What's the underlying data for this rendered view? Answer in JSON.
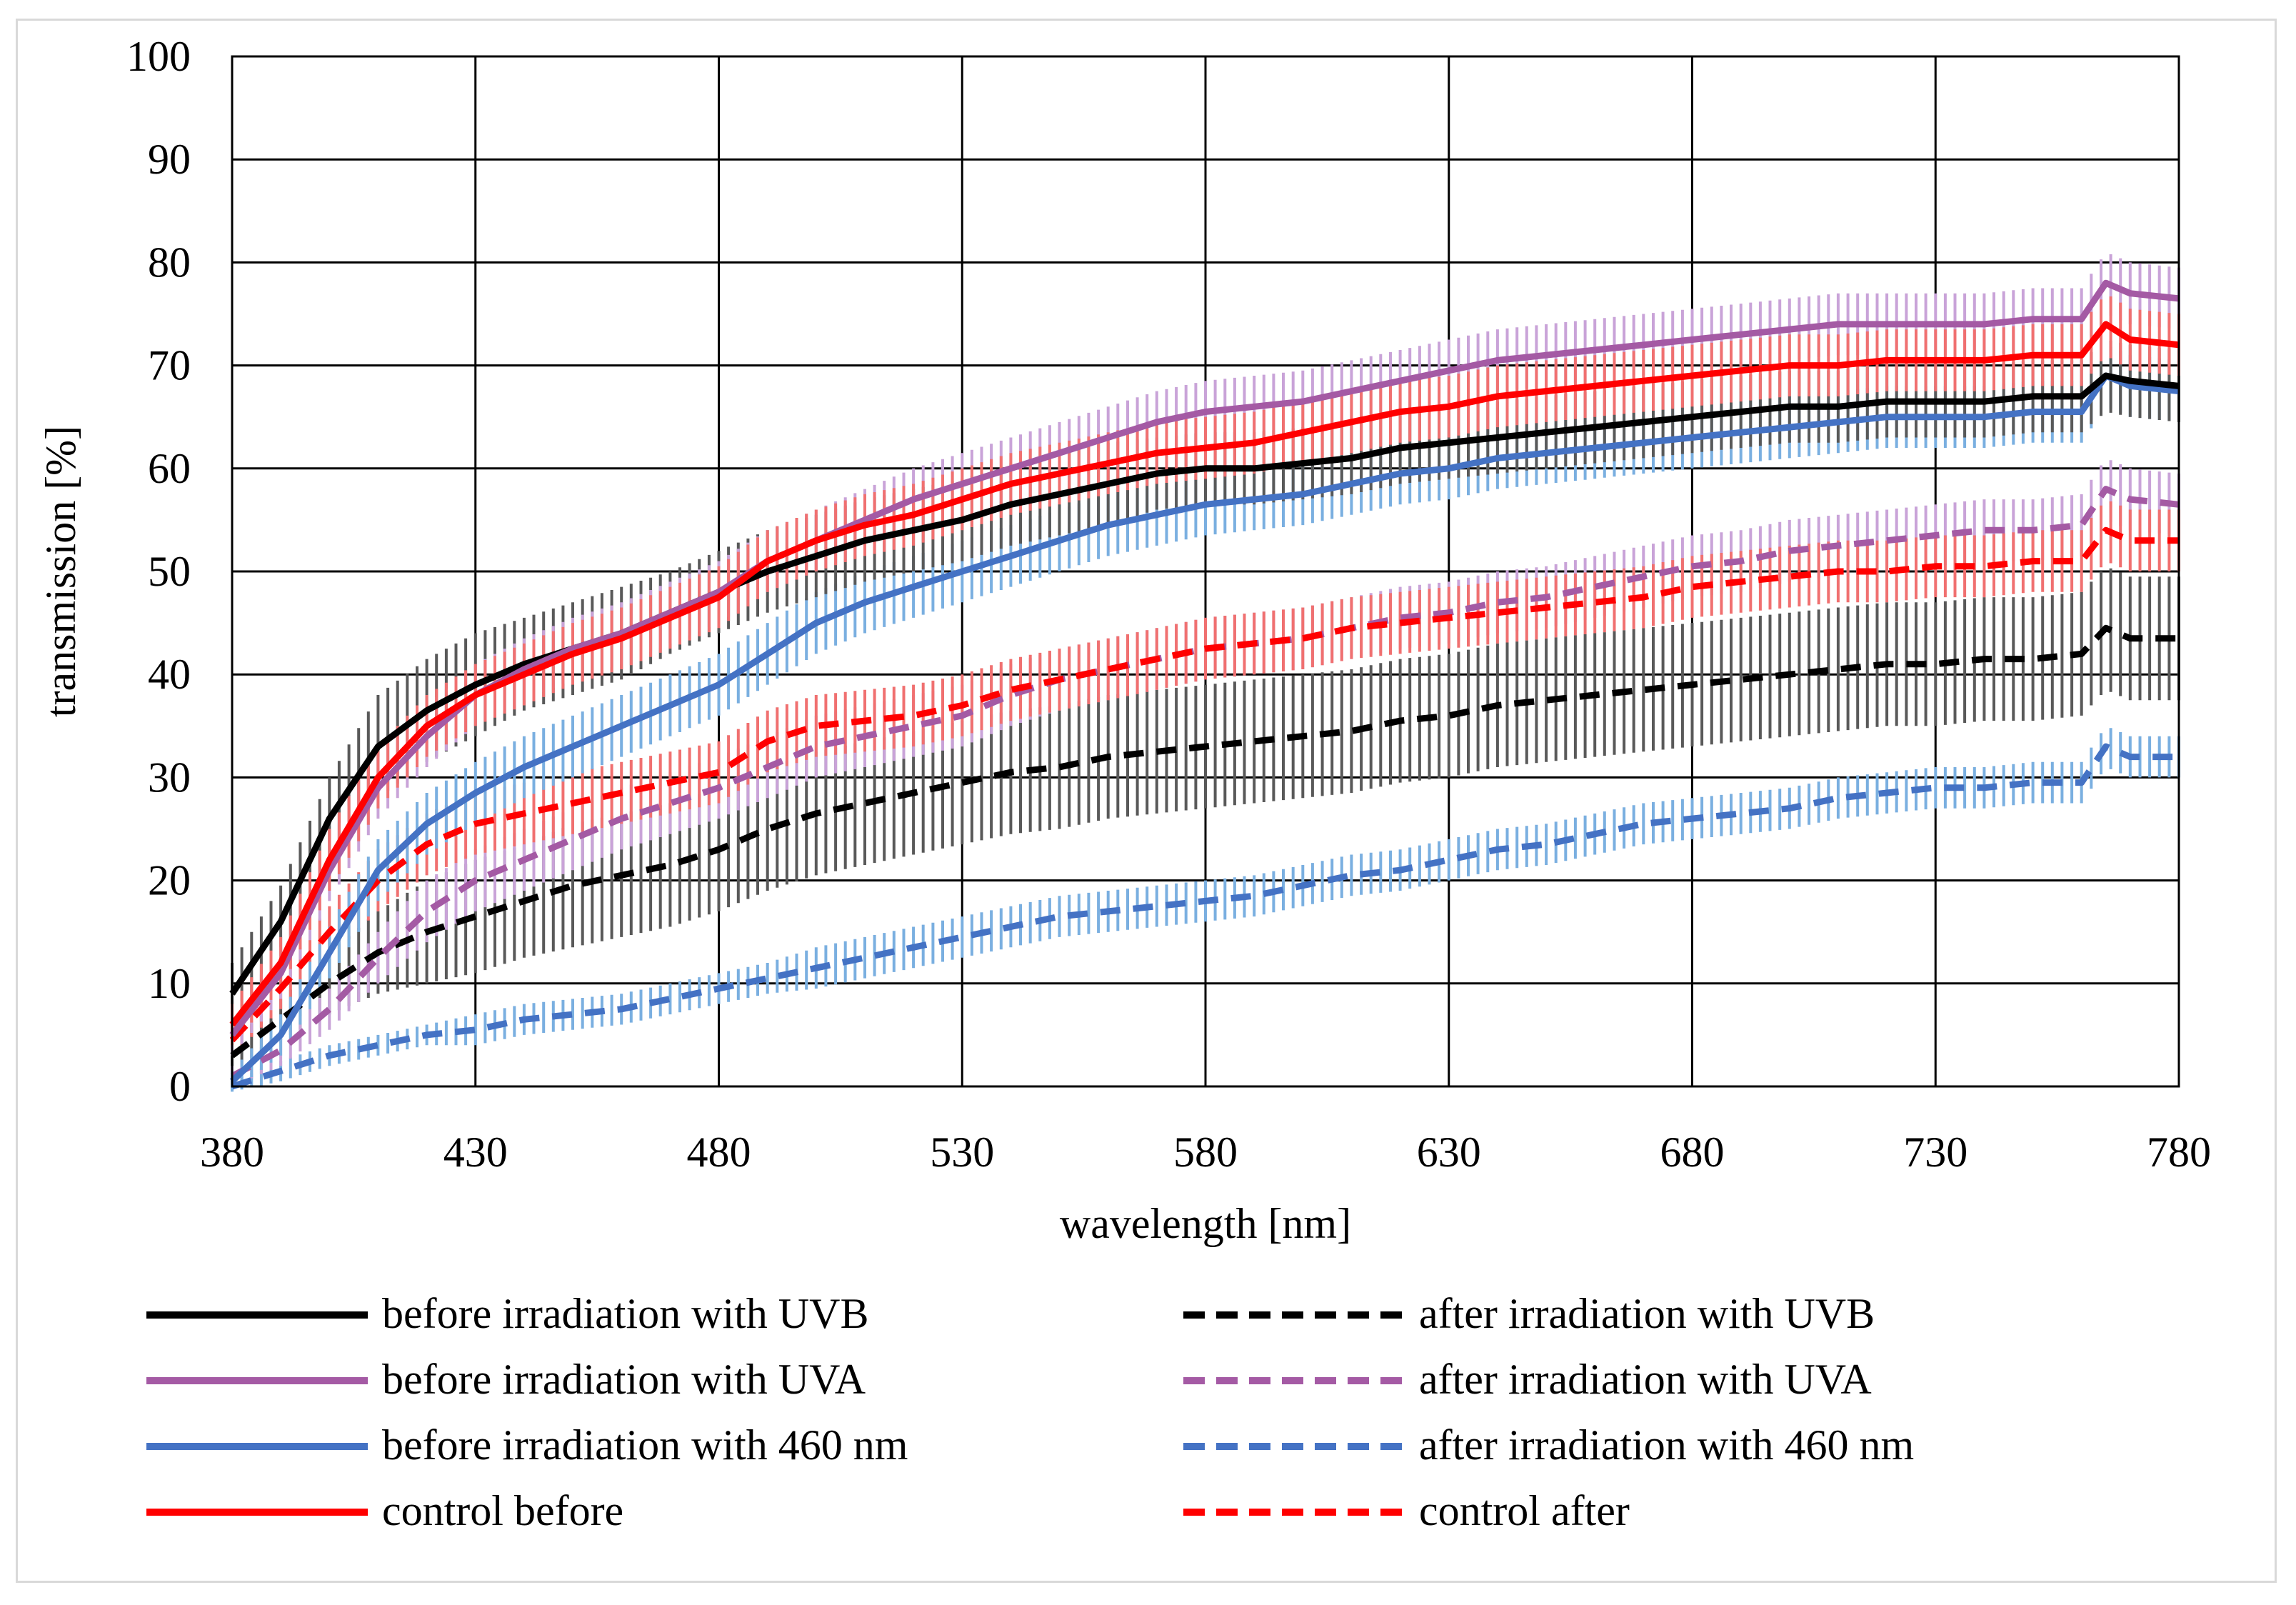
{
  "chart_data": {
    "type": "line",
    "title": "",
    "xlabel": "wavelength [nm]",
    "ylabel": "transmission [%]",
    "xlim": [
      380,
      780
    ],
    "ylim": [
      0,
      100
    ],
    "xticks": [
      380,
      430,
      480,
      530,
      580,
      630,
      680,
      730,
      780
    ],
    "yticks": [
      0,
      10,
      20,
      30,
      40,
      50,
      60,
      70,
      80,
      90,
      100
    ],
    "grid": true,
    "legend_position": "bottom",
    "error_bars": true,
    "series": [
      {
        "name": "before irradiation with UVB",
        "color": "#000000",
        "dash": "solid",
        "error_color": "#595959",
        "x": [
          380,
          390,
          400,
          410,
          420,
          430,
          440,
          450,
          460,
          470,
          480,
          490,
          500,
          510,
          520,
          530,
          540,
          550,
          560,
          570,
          580,
          590,
          600,
          610,
          620,
          630,
          640,
          650,
          660,
          670,
          680,
          690,
          700,
          710,
          720,
          730,
          740,
          750,
          760,
          765,
          770,
          780
        ],
        "y": [
          9,
          16,
          26,
          33,
          36.5,
          39,
          41,
          42.5,
          44,
          46,
          48,
          50,
          51.5,
          53,
          54,
          55,
          56.5,
          57.5,
          58.5,
          59.5,
          60,
          60,
          60.5,
          61,
          62,
          62.5,
          63,
          63.5,
          64,
          64.5,
          65,
          65.5,
          66,
          66,
          66.5,
          66.5,
          66.5,
          67,
          67,
          69,
          68.5,
          68
        ],
        "err": [
          3,
          3.5,
          4,
          5,
          5,
          5,
          4.5,
          4.5,
          4.5,
          4,
          4,
          4,
          4,
          4,
          4,
          4,
          4,
          4,
          4,
          3.5,
          3.5,
          3.5,
          3.5,
          3.5,
          3.5,
          3.5,
          3.5,
          3.5,
          3.5,
          3.5,
          3.5,
          3.5,
          3.5,
          3.5,
          3.5,
          3.5,
          3.5,
          3.5,
          3.5,
          3.5,
          3.5,
          3.5
        ]
      },
      {
        "name": "before irradiation with UVA",
        "color": "#a45aa4",
        "dash": "solid",
        "error_color": "#c9a3d8",
        "x": [
          380,
          390,
          400,
          410,
          420,
          430,
          440,
          450,
          460,
          470,
          480,
          490,
          500,
          510,
          520,
          530,
          540,
          550,
          560,
          570,
          580,
          590,
          600,
          610,
          620,
          630,
          640,
          650,
          660,
          670,
          680,
          690,
          700,
          710,
          720,
          730,
          740,
          750,
          760,
          765,
          770,
          780
        ],
        "y": [
          5,
          11,
          21,
          29,
          34,
          38,
          40.5,
          42.5,
          44,
          46,
          48,
          51,
          53,
          55,
          57,
          58.5,
          60,
          61.5,
          63,
          64.5,
          65.5,
          66,
          66.5,
          67.5,
          68.5,
          69.5,
          70.5,
          71,
          71.5,
          72,
          72.5,
          73,
          73.5,
          74,
          74,
          74,
          74,
          74.5,
          74.5,
          78,
          77,
          76.5
        ],
        "err": [
          2,
          2.5,
          3,
          3,
          3,
          3,
          3,
          3,
          3,
          3,
          3,
          3,
          3,
          3,
          3,
          3,
          3,
          3,
          3,
          3,
          3,
          3,
          3,
          3,
          3,
          3,
          3,
          3,
          3,
          3,
          3,
          3,
          3,
          3,
          3,
          3,
          3,
          3,
          3,
          3,
          3,
          3
        ]
      },
      {
        "name": "before irradiation with 460 nm",
        "color": "#4472c4",
        "dash": "solid",
        "error_color": "#7aafe0",
        "x": [
          380,
          390,
          400,
          410,
          420,
          430,
          440,
          450,
          460,
          470,
          480,
          490,
          500,
          510,
          520,
          530,
          540,
          550,
          560,
          570,
          580,
          590,
          600,
          610,
          620,
          630,
          640,
          650,
          660,
          670,
          680,
          690,
          700,
          710,
          720,
          730,
          740,
          750,
          760,
          765,
          770,
          780
        ],
        "y": [
          0.5,
          5,
          13,
          21,
          25.5,
          28.5,
          31,
          33,
          35,
          37,
          39,
          42,
          45,
          47,
          48.5,
          50,
          51.5,
          53,
          54.5,
          55.5,
          56.5,
          57,
          57.5,
          58.5,
          59.5,
          60,
          61,
          61.5,
          62,
          62.5,
          63,
          63.5,
          64,
          64.5,
          65,
          65,
          65,
          65.5,
          65.5,
          69,
          68,
          67.5
        ],
        "err": [
          1,
          2,
          2.5,
          3,
          3,
          3,
          3,
          3,
          3,
          3,
          3,
          3,
          3,
          3,
          3,
          3,
          3,
          3,
          3,
          3,
          3,
          3,
          3,
          3,
          3,
          3,
          3,
          3,
          3,
          3,
          3,
          3,
          3,
          3,
          3,
          3,
          3,
          3,
          3,
          3,
          3,
          3
        ]
      },
      {
        "name": "control before",
        "color": "#ff0000",
        "dash": "solid",
        "error_color": "#f07070",
        "x": [
          380,
          390,
          400,
          410,
          420,
          430,
          440,
          450,
          460,
          470,
          480,
          490,
          500,
          510,
          520,
          530,
          540,
          550,
          560,
          570,
          580,
          590,
          600,
          610,
          620,
          630,
          640,
          650,
          660,
          670,
          680,
          690,
          700,
          710,
          720,
          730,
          740,
          750,
          760,
          765,
          770,
          780
        ],
        "y": [
          6,
          12,
          22,
          30,
          35,
          38,
          40,
          42,
          43.5,
          45.5,
          47.5,
          51,
          53,
          54.5,
          55.5,
          57,
          58.5,
          59.5,
          60.5,
          61.5,
          62,
          62.5,
          63.5,
          64.5,
          65.5,
          66,
          67,
          67.5,
          68,
          68.5,
          69,
          69.5,
          70,
          70,
          70.5,
          70.5,
          70.5,
          71,
          71,
          74,
          72.5,
          72
        ],
        "err": [
          2,
          2.5,
          3,
          3,
          3,
          3,
          3,
          3,
          3,
          3,
          3,
          3,
          3,
          3,
          3,
          3,
          3,
          3,
          3,
          3,
          3,
          3,
          3,
          3,
          3,
          3,
          3,
          3,
          3,
          3,
          3,
          3,
          3,
          3,
          3,
          3,
          3,
          3,
          3,
          3,
          3,
          3
        ]
      },
      {
        "name": "after irradiation with UVB",
        "color": "#000000",
        "dash": "dashed",
        "error_color": "#595959",
        "x": [
          380,
          390,
          400,
          410,
          420,
          430,
          440,
          450,
          460,
          470,
          480,
          490,
          500,
          510,
          520,
          530,
          540,
          550,
          560,
          570,
          580,
          590,
          600,
          610,
          620,
          630,
          640,
          650,
          660,
          670,
          680,
          690,
          700,
          710,
          720,
          730,
          740,
          750,
          760,
          765,
          770,
          780
        ],
        "y": [
          3,
          6.5,
          10,
          13,
          15,
          16.5,
          18,
          19.5,
          20.5,
          21.5,
          23,
          25,
          26.5,
          27.5,
          28.5,
          29.5,
          30.5,
          31,
          32,
          32.5,
          33,
          33.5,
          34,
          34.5,
          35.5,
          36,
          37,
          37.5,
          38,
          38.5,
          39,
          39.5,
          40,
          40.5,
          41,
          41,
          41.5,
          41.5,
          42,
          44.5,
          43.5,
          43.5
        ],
        "err": [
          1.5,
          2,
          3,
          4,
          5,
          5.5,
          5.5,
          6,
          6,
          6,
          6,
          6,
          6,
          6,
          6,
          6,
          6,
          6,
          6,
          6,
          6,
          6,
          6,
          6,
          6,
          6,
          6,
          6,
          6,
          6,
          6,
          6,
          6,
          6,
          6,
          6,
          6,
          6,
          6,
          6,
          6,
          6
        ]
      },
      {
        "name": "after irradiation with UVA",
        "color": "#a45aa4",
        "dash": "dashed",
        "error_color": "#c9a3d8",
        "x": [
          380,
          390,
          400,
          410,
          420,
          430,
          440,
          450,
          460,
          470,
          480,
          490,
          500,
          510,
          520,
          530,
          540,
          550,
          560,
          570,
          580,
          590,
          600,
          610,
          620,
          630,
          640,
          650,
          660,
          670,
          680,
          690,
          700,
          710,
          720,
          730,
          740,
          750,
          760,
          765,
          770,
          780
        ],
        "y": [
          1,
          3.5,
          7.5,
          12.5,
          17,
          20,
          22,
          24,
          26,
          27.5,
          29,
          31,
          33,
          34,
          35,
          36,
          38,
          39.5,
          40.5,
          41.5,
          42.5,
          43,
          43.5,
          44.5,
          45.5,
          46,
          47,
          47.5,
          48.5,
          49.5,
          50.5,
          51,
          52,
          52.5,
          53,
          53.5,
          54,
          54,
          54.5,
          58,
          57,
          56.5
        ],
        "err": [
          1,
          1.5,
          2,
          2.5,
          3,
          3,
          3,
          3,
          3,
          3,
          3,
          3,
          3,
          3,
          3,
          3,
          3,
          3,
          3,
          3,
          3,
          3,
          3,
          3,
          3,
          3,
          3,
          3,
          3,
          3,
          3,
          3,
          3,
          3,
          3,
          3,
          3,
          3,
          3,
          3,
          3,
          3
        ]
      },
      {
        "name": "after irradiation with 460 nm",
        "color": "#4472c4",
        "dash": "dashed",
        "error_color": "#7aafe0",
        "x": [
          380,
          390,
          400,
          410,
          420,
          430,
          440,
          450,
          460,
          470,
          480,
          490,
          500,
          510,
          520,
          530,
          540,
          550,
          560,
          570,
          580,
          590,
          600,
          610,
          620,
          630,
          640,
          650,
          660,
          670,
          680,
          690,
          700,
          710,
          720,
          730,
          740,
          750,
          760,
          765,
          770,
          780
        ],
        "y": [
          0,
          1.5,
          3,
          4,
          5,
          5.5,
          6.5,
          7,
          7.5,
          8.5,
          9.5,
          10.5,
          11.5,
          12.5,
          13.5,
          14.5,
          15.5,
          16.5,
          17,
          17.5,
          18,
          18.5,
          19.5,
          20.5,
          21,
          22,
          23,
          23.5,
          24.5,
          25.5,
          26,
          26.5,
          27,
          28,
          28.5,
          29,
          29,
          29.5,
          29.5,
          33,
          32,
          32
        ],
        "err": [
          0.5,
          1,
          1,
          1,
          1,
          1.5,
          1.5,
          1.5,
          1.5,
          1.5,
          1.5,
          1.5,
          2,
          2,
          2,
          2,
          2,
          2,
          2,
          2,
          2,
          2,
          2,
          2,
          2,
          2,
          2,
          2,
          2,
          2,
          2,
          2,
          2,
          2,
          2,
          2,
          2,
          2,
          2,
          2,
          2,
          2
        ]
      },
      {
        "name": "control after",
        "color": "#ff0000",
        "dash": "dashed",
        "error_color": "#f07070",
        "x": [
          380,
          390,
          400,
          410,
          420,
          430,
          440,
          450,
          460,
          470,
          480,
          490,
          500,
          510,
          520,
          530,
          540,
          550,
          560,
          570,
          580,
          590,
          600,
          610,
          620,
          630,
          640,
          650,
          660,
          670,
          680,
          690,
          700,
          710,
          720,
          730,
          740,
          750,
          760,
          765,
          770,
          780
        ],
        "y": [
          4.5,
          9.5,
          15,
          20,
          23.5,
          25.5,
          26.5,
          27.5,
          28.5,
          29.5,
          30.5,
          33.5,
          35,
          35.5,
          36,
          37,
          38.5,
          39.5,
          40.5,
          41.5,
          42.5,
          43,
          43.5,
          44.5,
          45,
          45.5,
          46,
          46.5,
          47,
          47.5,
          48.5,
          49,
          49.5,
          50,
          50,
          50.5,
          50.5,
          51,
          51,
          54,
          53,
          53
        ],
        "err": [
          1.5,
          2,
          2.5,
          3,
          3,
          3,
          3,
          3,
          3,
          3,
          3,
          3,
          3,
          3,
          3,
          3,
          3,
          3,
          3,
          3,
          3,
          3,
          3,
          3,
          3,
          3,
          3,
          3,
          3,
          3,
          3,
          3,
          3,
          3,
          3,
          3,
          3,
          3,
          3,
          3,
          3,
          3
        ]
      }
    ]
  },
  "legend": {
    "items": [
      {
        "label": "before irradiation with UVB",
        "color": "#000000",
        "dash": "solid"
      },
      {
        "label": "after irradiation with UVB",
        "color": "#000000",
        "dash": "dashed"
      },
      {
        "label": "before irradiation with UVA",
        "color": "#a45aa4",
        "dash": "solid"
      },
      {
        "label": "after irradiation with UVA",
        "color": "#a45aa4",
        "dash": "dashed"
      },
      {
        "label": "before irradiation with 460 nm",
        "color": "#4472c4",
        "dash": "solid"
      },
      {
        "label": "after irradiation with 460 nm",
        "color": "#4472c4",
        "dash": "dashed"
      },
      {
        "label": "control before",
        "color": "#ff0000",
        "dash": "solid"
      },
      {
        "label": "control after",
        "color": "#ff0000",
        "dash": "dashed"
      }
    ]
  }
}
